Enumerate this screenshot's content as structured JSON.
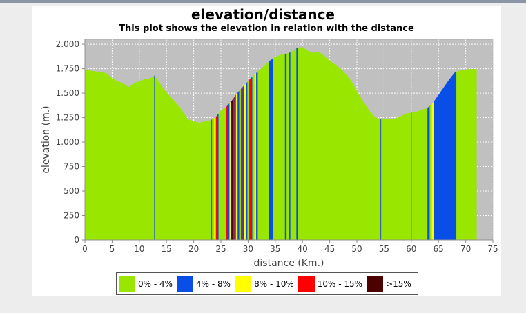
{
  "chart_data": {
    "type": "area",
    "title": "elevation/distance",
    "subtitle": "This plot shows the elevation in relation with the distance",
    "xlabel": "distance (Km.)",
    "ylabel": "elevation (m.)",
    "xlim": [
      0,
      75
    ],
    "ylim": [
      0,
      2050
    ],
    "x_ticks": [
      0,
      5,
      10,
      15,
      20,
      25,
      30,
      35,
      40,
      45,
      50,
      55,
      60,
      65,
      70,
      75
    ],
    "y_ticks": [
      {
        "value": 0,
        "label": "0"
      },
      {
        "value": 250,
        "label": "250"
      },
      {
        "value": 500,
        "label": "500"
      },
      {
        "value": 750,
        "label": "750"
      },
      {
        "value": 1000,
        "label": "1.000"
      },
      {
        "value": 1250,
        "label": "1.250"
      },
      {
        "value": 1500,
        "label": "1.500"
      },
      {
        "value": 1750,
        "label": "1.750"
      },
      {
        "value": 2000,
        "label": "2.000"
      }
    ],
    "grid": true,
    "background": "#c0c0c0",
    "legend_position": "bottom",
    "x": [
      0,
      1,
      2,
      3,
      4,
      5,
      6,
      7,
      8,
      9,
      10,
      11,
      12,
      12.8,
      13.5,
      14.5,
      16,
      17.5,
      19,
      20,
      21,
      22,
      23,
      24,
      25,
      26,
      27,
      28,
      29,
      30,
      31,
      32,
      33,
      34,
      35,
      36,
      37,
      38,
      39,
      40,
      41,
      42,
      43,
      44,
      45,
      46,
      47,
      48,
      49,
      50,
      51,
      52,
      53,
      54,
      55,
      56,
      57,
      58,
      59,
      60,
      61,
      62,
      63,
      64,
      65,
      66,
      67,
      68,
      69,
      70,
      71,
      72
    ],
    "y": [
      1740,
      1730,
      1720,
      1715,
      1700,
      1650,
      1620,
      1600,
      1560,
      1600,
      1620,
      1640,
      1650,
      1680,
      1620,
      1540,
      1440,
      1350,
      1230,
      1210,
      1195,
      1210,
      1220,
      1250,
      1320,
      1360,
      1420,
      1500,
      1560,
      1620,
      1680,
      1730,
      1780,
      1830,
      1870,
      1890,
      1900,
      1920,
      1960,
      1970,
      1930,
      1910,
      1920,
      1880,
      1830,
      1790,
      1750,
      1690,
      1620,
      1520,
      1430,
      1340,
      1270,
      1235,
      1240,
      1230,
      1240,
      1260,
      1290,
      1300,
      1310,
      1330,
      1350,
      1400,
      1480,
      1560,
      1640,
      1710,
      1730,
      1740,
      1745,
      1745
    ],
    "segments": [
      {
        "from": 0,
        "to": 23.8,
        "grade": 0
      },
      {
        "from": 23.8,
        "to": 24.1,
        "grade": 2
      },
      {
        "from": 24.1,
        "to": 24.4,
        "grade": 3
      },
      {
        "from": 24.4,
        "to": 24.6,
        "grade": 1
      },
      {
        "from": 24.6,
        "to": 26.0,
        "grade": 0
      },
      {
        "from": 26.0,
        "to": 26.3,
        "grade": 3
      },
      {
        "from": 26.3,
        "to": 26.6,
        "grade": 1
      },
      {
        "from": 26.6,
        "to": 26.9,
        "grade": 2
      },
      {
        "from": 26.9,
        "to": 27.2,
        "grade": 4
      },
      {
        "from": 27.2,
        "to": 27.5,
        "grade": 1
      },
      {
        "from": 27.5,
        "to": 27.8,
        "grade": 3
      },
      {
        "from": 27.8,
        "to": 28.1,
        "grade": 2
      },
      {
        "from": 28.1,
        "to": 28.4,
        "grade": 1
      },
      {
        "from": 28.4,
        "to": 28.7,
        "grade": 0
      },
      {
        "from": 28.7,
        "to": 29.0,
        "grade": 3
      },
      {
        "from": 29.0,
        "to": 29.3,
        "grade": 1
      },
      {
        "from": 29.3,
        "to": 29.6,
        "grade": 2
      },
      {
        "from": 29.6,
        "to": 29.9,
        "grade": 1
      },
      {
        "from": 29.9,
        "to": 30.2,
        "grade": 0
      },
      {
        "from": 30.2,
        "to": 30.5,
        "grade": 3
      },
      {
        "from": 30.5,
        "to": 30.8,
        "grade": 1
      },
      {
        "from": 30.8,
        "to": 31.2,
        "grade": 0
      },
      {
        "from": 31.2,
        "to": 31.5,
        "grade": 2
      },
      {
        "from": 31.5,
        "to": 31.8,
        "grade": 1
      },
      {
        "from": 31.8,
        "to": 33.8,
        "grade": 0
      },
      {
        "from": 33.8,
        "to": 34.6,
        "grade": 1
      },
      {
        "from": 34.6,
        "to": 36.8,
        "grade": 0
      },
      {
        "from": 36.8,
        "to": 37.1,
        "grade": 1
      },
      {
        "from": 37.1,
        "to": 37.5,
        "grade": 0
      },
      {
        "from": 37.5,
        "to": 37.8,
        "grade": 1
      },
      {
        "from": 37.8,
        "to": 38.9,
        "grade": 0
      },
      {
        "from": 38.9,
        "to": 39.2,
        "grade": 1
      },
      {
        "from": 39.2,
        "to": 63.0,
        "grade": 0
      },
      {
        "from": 63.0,
        "to": 63.4,
        "grade": 1
      },
      {
        "from": 63.4,
        "to": 63.8,
        "grade": 0
      },
      {
        "from": 63.8,
        "to": 64.2,
        "grade": 2
      },
      {
        "from": 64.2,
        "to": 68.3,
        "grade": 1
      },
      {
        "from": 68.3,
        "to": 72,
        "grade": 0
      }
    ],
    "thin_lines": [
      12.8,
      23.3,
      54.4,
      60.0
    ],
    "legend": [
      {
        "label": "0% - 4%",
        "color": "#99e600"
      },
      {
        "label": "4% - 8%",
        "color": "#0a4ee8"
      },
      {
        "label": "8% - 10%",
        "color": "#ffff00"
      },
      {
        "label": "10% - 15%",
        "color": "#ff0000"
      },
      {
        "label": ">15%",
        "color": "#4d0000"
      }
    ]
  }
}
